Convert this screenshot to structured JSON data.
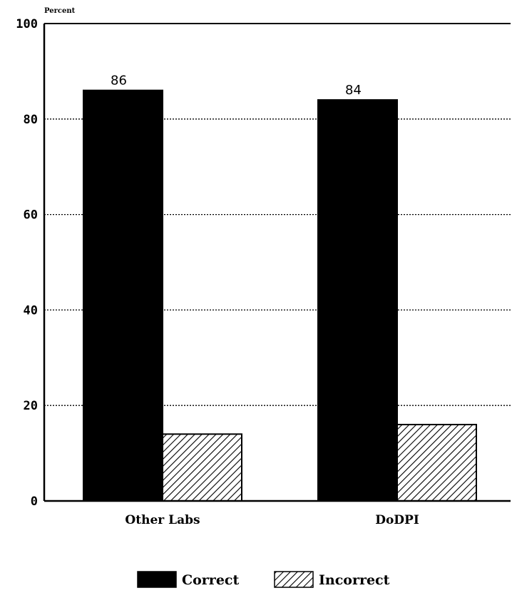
{
  "chart_data": {
    "type": "bar",
    "title": "",
    "xlabel": "",
    "ylabel": "Percent",
    "ylim": [
      0,
      100
    ],
    "yticks": [
      "0",
      "20",
      "40",
      "60",
      "80",
      "100"
    ],
    "grid": true,
    "categories": [
      "Other Labs",
      "DoDPI"
    ],
    "series": [
      {
        "name": "Correct",
        "values": [
          86,
          84
        ],
        "data_labels": [
          "86",
          "84"
        ],
        "fill": "#000000"
      },
      {
        "name": "Incorrect",
        "values": [
          14,
          16
        ],
        "data_labels": [
          "",
          ""
        ],
        "fill": "hatch"
      }
    ],
    "legend": {
      "position": "bottom",
      "items": [
        "Correct",
        "Incorrect"
      ]
    }
  }
}
